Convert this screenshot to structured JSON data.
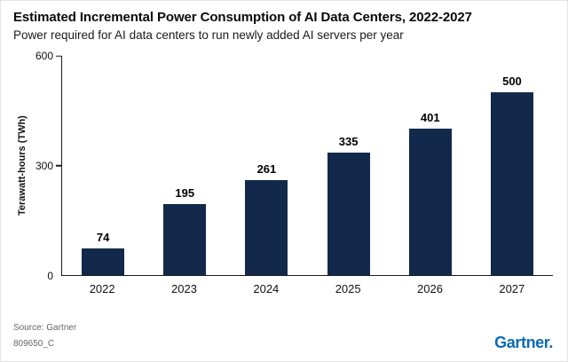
{
  "header": {
    "title": "Estimated Incremental Power Consumption of AI Data Centers, 2022-2027",
    "subtitle": "Power required for AI data centers to run newly added AI servers per year"
  },
  "chart_data": {
    "type": "bar",
    "title": "Estimated Incremental Power Consumption of AI Data Centers, 2022-2027",
    "categories": [
      "2022",
      "2023",
      "2024",
      "2025",
      "2026",
      "2027"
    ],
    "values": [
      74,
      195,
      261,
      335,
      401,
      500
    ],
    "xlabel": "",
    "ylabel": "Terawatt-hours (TWh)",
    "ylim": [
      0,
      600
    ],
    "yticks": [
      0,
      300,
      600
    ],
    "grid": false,
    "legend": "none",
    "bar_color": "#13294b",
    "axis_color": "#1a1a1a"
  },
  "footer": {
    "source": "Source: Gartner",
    "code": "809650_C",
    "logo": "Gartner.",
    "logo_color": "#0b6bb2"
  }
}
